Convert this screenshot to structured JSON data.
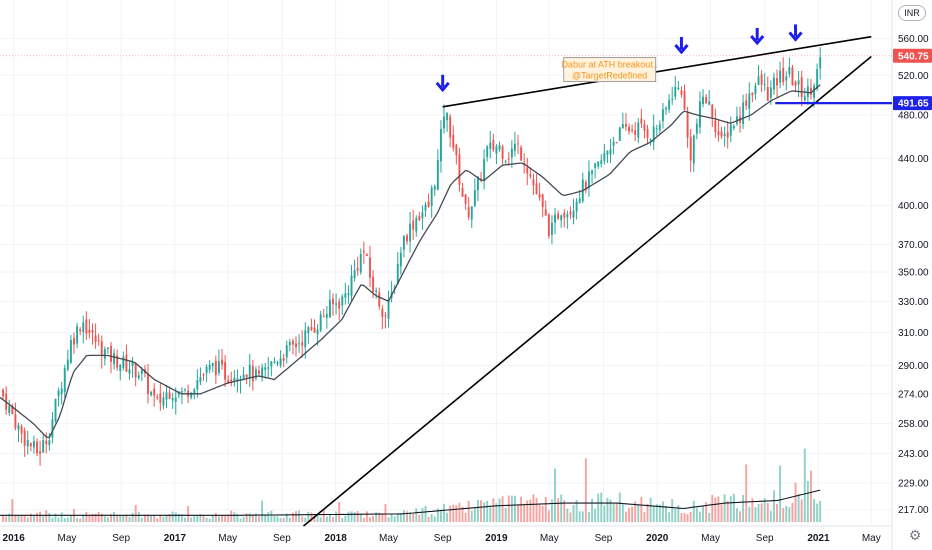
{
  "currency_label": "INR",
  "icons": {
    "settings": "gear-icon",
    "signal_arrow": "arrow-down-icon"
  },
  "colors": {
    "up": "#26a69a",
    "down": "#ef5350",
    "vol_up": "#8fd1c6",
    "vol_down": "#f5a3a1",
    "trendline": "#000000",
    "arrow": "#1e1ee6",
    "price_tag": "#ef5350",
    "level_tag": "#1e22e6",
    "note_border": "#a0a0a0",
    "note_bg": "#fff3dd",
    "note_text": "#f7941d"
  },
  "chart_data": {
    "type": "candlestick",
    "interval": "weekly",
    "y_scale": "log",
    "ylim": [
      210,
      605
    ],
    "y_ticks": [
      "560.00",
      "520.00",
      "480.00",
      "440.00",
      "400.00",
      "370.00",
      "350.00",
      "330.00",
      "310.00",
      "290.00",
      "274.00",
      "258.00",
      "243.00",
      "229.00",
      "217.00"
    ],
    "x_ticks": [
      {
        "label": "2016",
        "date": "2016-01-01",
        "bold": true
      },
      {
        "label": "May",
        "date": "2016-05-01",
        "bold": false
      },
      {
        "label": "Sep",
        "date": "2016-09-01",
        "bold": false
      },
      {
        "label": "2017",
        "date": "2017-01-01",
        "bold": true
      },
      {
        "label": "May",
        "date": "2017-05-01",
        "bold": false
      },
      {
        "label": "Sep",
        "date": "2017-09-01",
        "bold": false
      },
      {
        "label": "2018",
        "date": "2018-01-01",
        "bold": true
      },
      {
        "label": "May",
        "date": "2018-05-01",
        "bold": false
      },
      {
        "label": "Sep",
        "date": "2018-09-01",
        "bold": false
      },
      {
        "label": "2019",
        "date": "2019-01-01",
        "bold": true
      },
      {
        "label": "May",
        "date": "2019-05-01",
        "bold": false
      },
      {
        "label": "Sep",
        "date": "2019-09-01",
        "bold": false
      },
      {
        "label": "2020",
        "date": "2020-01-01",
        "bold": true
      },
      {
        "label": "May",
        "date": "2020-05-01",
        "bold": false
      },
      {
        "label": "Sep",
        "date": "2020-09-01",
        "bold": false
      },
      {
        "label": "2021",
        "date": "2021-01-01",
        "bold": true
      },
      {
        "label": "May",
        "date": "2021-05-01",
        "bold": false
      }
    ],
    "close_anchors": [
      [
        "2015-12-01",
        276
      ],
      [
        "2016-01-20",
        252
      ],
      [
        "2016-02-25",
        243
      ],
      [
        "2016-03-20",
        252
      ],
      [
        "2016-04-20",
        282
      ],
      [
        "2016-05-10",
        304
      ],
      [
        "2016-06-05",
        318
      ],
      [
        "2016-06-25",
        308
      ],
      [
        "2016-08-01",
        296
      ],
      [
        "2016-09-15",
        290
      ],
      [
        "2016-10-15",
        286
      ],
      [
        "2016-11-20",
        268
      ],
      [
        "2016-12-20",
        276
      ],
      [
        "2017-01-20",
        274
      ],
      [
        "2017-03-01",
        284
      ],
      [
        "2017-04-01",
        290
      ],
      [
        "2017-05-01",
        284
      ],
      [
        "2017-06-10",
        288
      ],
      [
        "2017-07-10",
        282
      ],
      [
        "2017-08-20",
        294
      ],
      [
        "2017-10-01",
        302
      ],
      [
        "2017-11-15",
        314
      ],
      [
        "2017-12-20",
        326
      ],
      [
        "2018-01-20",
        332
      ],
      [
        "2018-02-20",
        356
      ],
      [
        "2018-03-05",
        366
      ],
      [
        "2018-03-25",
        340
      ],
      [
        "2018-04-25",
        320
      ],
      [
        "2018-05-10",
        336
      ],
      [
        "2018-06-01",
        372
      ],
      [
        "2018-07-05",
        392
      ],
      [
        "2018-07-30",
        398
      ],
      [
        "2018-08-20",
        432
      ],
      [
        "2018-09-05",
        486
      ],
      [
        "2018-09-20",
        462
      ],
      [
        "2018-10-05",
        430
      ],
      [
        "2018-10-25",
        392
      ],
      [
        "2018-11-15",
        410
      ],
      [
        "2018-12-10",
        446
      ],
      [
        "2019-01-05",
        452
      ],
      [
        "2019-01-25",
        442
      ],
      [
        "2019-02-15",
        452
      ],
      [
        "2019-03-05",
        440
      ],
      [
        "2019-03-25",
        418
      ],
      [
        "2019-04-15",
        396
      ],
      [
        "2019-05-05",
        378
      ],
      [
        "2019-05-25",
        398
      ],
      [
        "2019-06-15",
        396
      ],
      [
        "2019-07-10",
        412
      ],
      [
        "2019-08-05",
        424
      ],
      [
        "2019-09-01",
        440
      ],
      [
        "2019-09-25",
        458
      ],
      [
        "2019-10-20",
        466
      ],
      [
        "2019-11-20",
        468
      ],
      [
        "2019-12-20",
        462
      ],
      [
        "2020-01-15",
        478
      ],
      [
        "2020-02-05",
        504
      ],
      [
        "2020-02-25",
        506
      ],
      [
        "2020-03-15",
        440
      ],
      [
        "2020-03-30",
        470
      ],
      [
        "2020-04-15",
        500
      ],
      [
        "2020-05-05",
        482
      ],
      [
        "2020-05-25",
        452
      ],
      [
        "2020-06-15",
        470
      ],
      [
        "2020-07-05",
        478
      ],
      [
        "2020-07-25",
        500
      ],
      [
        "2020-08-20",
        514
      ],
      [
        "2020-09-10",
        500
      ],
      [
        "2020-10-05",
        518
      ],
      [
        "2020-10-25",
        522
      ],
      [
        "2020-11-15",
        508
      ],
      [
        "2020-12-05",
        500
      ],
      [
        "2020-12-25",
        518
      ],
      [
        "2021-01-10",
        540.75
      ]
    ],
    "ma_anchors": [
      [
        "2015-12-01",
        272
      ],
      [
        "2016-02-15",
        258
      ],
      [
        "2016-03-20",
        250
      ],
      [
        "2016-04-15",
        262
      ],
      [
        "2016-05-15",
        286
      ],
      [
        "2016-06-15",
        296
      ],
      [
        "2016-08-01",
        296
      ],
      [
        "2016-10-01",
        292
      ],
      [
        "2016-11-15",
        282
      ],
      [
        "2017-01-15",
        274
      ],
      [
        "2017-03-01",
        274
      ],
      [
        "2017-05-01",
        280
      ],
      [
        "2017-07-10",
        284
      ],
      [
        "2017-08-15",
        282
      ],
      [
        "2017-10-01",
        292
      ],
      [
        "2017-12-01",
        306
      ],
      [
        "2018-01-15",
        318
      ],
      [
        "2018-03-01",
        342
      ],
      [
        "2018-04-01",
        334
      ],
      [
        "2018-05-01",
        330
      ],
      [
        "2018-06-01",
        348
      ],
      [
        "2018-07-10",
        372
      ],
      [
        "2018-08-20",
        394
      ],
      [
        "2018-09-20",
        418
      ],
      [
        "2018-10-25",
        430
      ],
      [
        "2018-12-01",
        420
      ],
      [
        "2019-01-15",
        434
      ],
      [
        "2019-03-01",
        436
      ],
      [
        "2019-04-15",
        424
      ],
      [
        "2019-06-01",
        408
      ],
      [
        "2019-07-15",
        412
      ],
      [
        "2019-09-15",
        426
      ],
      [
        "2019-11-01",
        446
      ],
      [
        "2019-12-15",
        454
      ],
      [
        "2020-02-01",
        470
      ],
      [
        "2020-03-01",
        484
      ],
      [
        "2020-04-01",
        480
      ],
      [
        "2020-05-15",
        476
      ],
      [
        "2020-06-15",
        472
      ],
      [
        "2020-08-01",
        480
      ],
      [
        "2020-09-15",
        494
      ],
      [
        "2020-11-01",
        504
      ],
      [
        "2020-12-15",
        502
      ],
      [
        "2021-01-10",
        512
      ]
    ],
    "volume_ma_anchors": [
      [
        "2015-12-01",
        0.05
      ],
      [
        "2016-06-01",
        0.05
      ],
      [
        "2017-06-01",
        0.05
      ],
      [
        "2018-06-01",
        0.06
      ],
      [
        "2019-01-01",
        0.12
      ],
      [
        "2019-06-01",
        0.14
      ],
      [
        "2019-10-01",
        0.14
      ],
      [
        "2020-03-01",
        0.1
      ],
      [
        "2020-06-01",
        0.14
      ],
      [
        "2020-10-01",
        0.16
      ],
      [
        "2021-01-10",
        0.24
      ]
    ],
    "last_close": {
      "date": "2021-01-10",
      "value": 540.75,
      "label": "540.75"
    },
    "horizontal_level": {
      "value": 491.65,
      "label": "491.65",
      "from_date": "2020-09-25"
    },
    "trendlines": [
      {
        "name": "upper-resistance",
        "from": {
          "date": "2018-09-01",
          "value": 488
        },
        "to": {
          "date": "2021-05-01",
          "value": 562
        }
      },
      {
        "name": "rising-support",
        "from": {
          "date": "2017-10-20",
          "value": 210
        },
        "to": {
          "date": "2021-05-01",
          "value": 540
        }
      }
    ],
    "signal_arrows": [
      {
        "date": "2018-09-01",
        "value": 506
      },
      {
        "date": "2020-02-25",
        "value": 546
      },
      {
        "date": "2020-08-15",
        "value": 556
      },
      {
        "date": "2020-11-10",
        "value": 560
      }
    ],
    "annotation": {
      "lines": [
        "Dabur at ATH breakout..",
        "@TargetRedefined"
      ],
      "date": "2019-09-15",
      "value": 525
    }
  }
}
